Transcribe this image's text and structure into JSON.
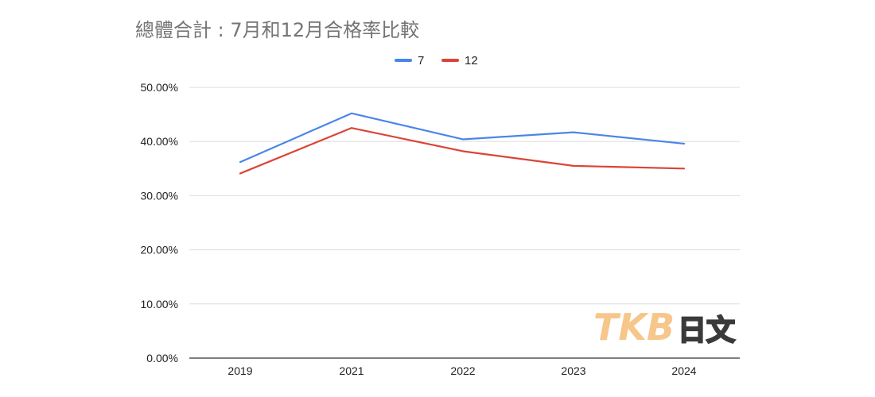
{
  "chart_data": {
    "type": "line",
    "title": "總體合計 : 7月和12月合格率比較",
    "categories": [
      "2019",
      "2021",
      "2022",
      "2023",
      "2024"
    ],
    "series": [
      {
        "name": "7",
        "color": "#4a86e8",
        "values": [
          36.2,
          45.2,
          40.4,
          41.7,
          39.6
        ]
      },
      {
        "name": "12",
        "color": "#db4437",
        "values": [
          34.1,
          42.5,
          38.2,
          35.5,
          35.0
        ]
      }
    ],
    "yticks": [
      "0.00%",
      "10.00%",
      "20.00%",
      "30.00%",
      "40.00%",
      "50.00%"
    ],
    "ylim": [
      0,
      50
    ],
    "ylabel": "",
    "xlabel": "",
    "grid": true,
    "legend_position": "top"
  },
  "watermark": {
    "brand": "TKB",
    "suffix": "日文"
  }
}
